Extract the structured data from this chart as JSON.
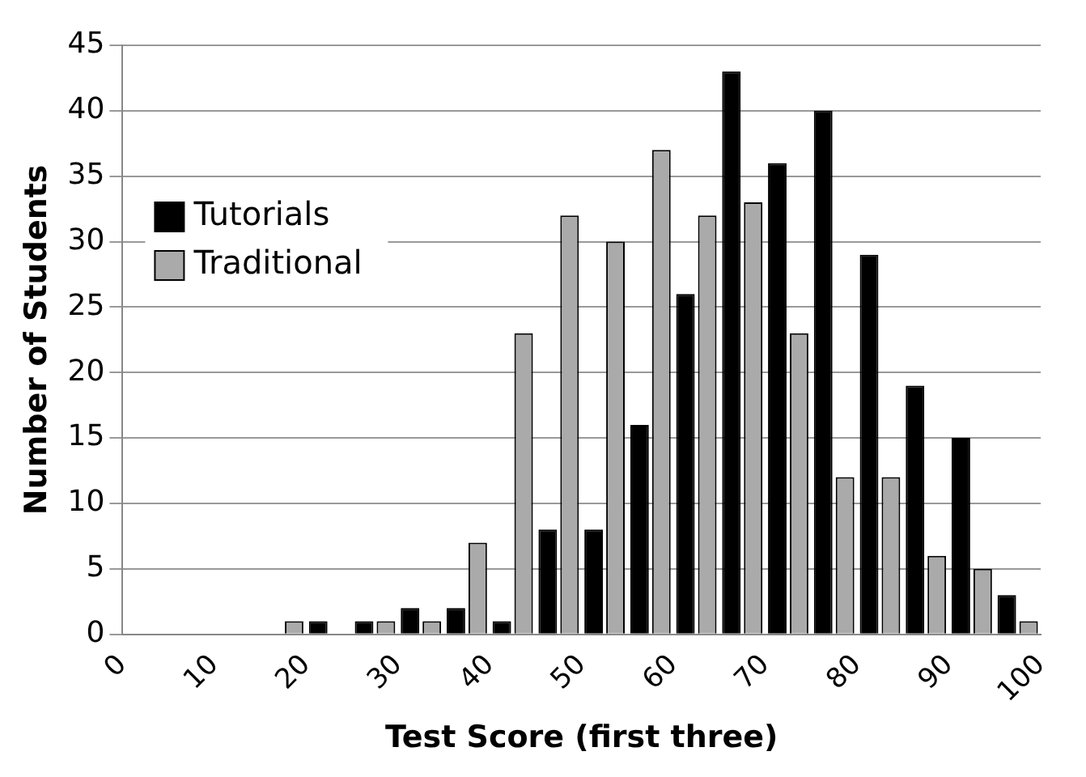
{
  "chart_data": {
    "type": "histogram",
    "xlabel": "Test Score (first three)",
    "ylabel": "Number of Students",
    "bins": [
      0,
      5,
      10,
      15,
      20,
      25,
      30,
      35,
      40,
      45,
      50,
      55,
      60,
      65,
      70,
      75,
      80,
      85,
      90,
      95,
      100
    ],
    "series": [
      {
        "name": "Tutorials",
        "color": "#000000",
        "values": [
          0,
          0,
          0,
          0,
          1,
          1,
          2,
          2,
          1,
          8,
          8,
          16,
          26,
          43,
          36,
          40,
          29,
          19,
          15,
          3
        ]
      },
      {
        "name": "Traditional",
        "color": "#aaaaaa",
        "values": [
          0,
          0,
          0,
          1,
          0,
          1,
          1,
          7,
          23,
          32,
          30,
          37,
          32,
          33,
          23,
          12,
          12,
          6,
          5,
          1
        ]
      }
    ],
    "xlim": [
      0,
      100
    ],
    "xticks": [
      0,
      10,
      20,
      30,
      40,
      50,
      60,
      70,
      80,
      90,
      100
    ],
    "ylim": [
      0,
      45
    ],
    "yticks": [
      0,
      5,
      10,
      15,
      20,
      25,
      30,
      35,
      40,
      45
    ],
    "grid": "y",
    "legend": "top left"
  }
}
